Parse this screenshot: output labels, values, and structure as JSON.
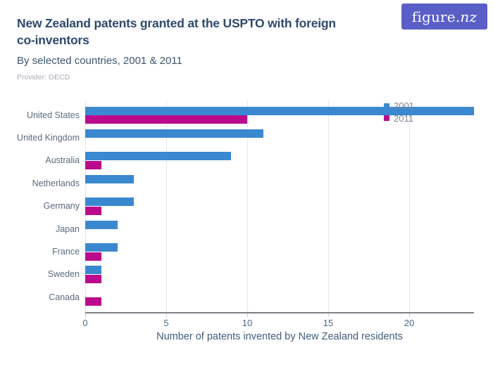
{
  "header": {
    "title_lines": [
      "New Zealand patents granted at the USPTO with foreign",
      "co-inventors"
    ],
    "subtitle": "By selected countries, 2001 & 2011",
    "provider": "Provider: OECD",
    "logo_prefix": "figure.",
    "logo_suffix": "nz"
  },
  "colors": {
    "series_2001": "#3a88d0",
    "series_2011": "#bb0b8c",
    "logo_background": "#5a5fc7",
    "title_text": "#2d4a6e",
    "category_text": "#5a6b80",
    "tick_text": "#4a6785",
    "gridline": "#e6e8ec",
    "axis_line": "#7d8187"
  },
  "chart_data": {
    "type": "bar",
    "orientation": "horizontal",
    "title": "New Zealand patents granted at the USPTO with foreign co-inventors",
    "subtitle": "By selected countries, 2001 & 2011",
    "provider": "OECD",
    "categories": [
      "United States",
      "United Kingdom",
      "Australia",
      "Netherlands",
      "Germany",
      "Japan",
      "France",
      "Sweden",
      "Canada"
    ],
    "series": [
      {
        "name": "2001",
        "color": "#3a88d0",
        "values": [
          24,
          11,
          9,
          3,
          3,
          2,
          2,
          1,
          0
        ]
      },
      {
        "name": "2011",
        "color": "#bb0b8c",
        "values": [
          10,
          0,
          1,
          0,
          1,
          0,
          1,
          1,
          1
        ]
      }
    ],
    "xlabel": "Number of patents invented by New Zealand residents",
    "xlim": [
      0,
      24
    ],
    "xticks": [
      0,
      5,
      10,
      15,
      20
    ],
    "grid": true,
    "legend_position": "top-right"
  }
}
